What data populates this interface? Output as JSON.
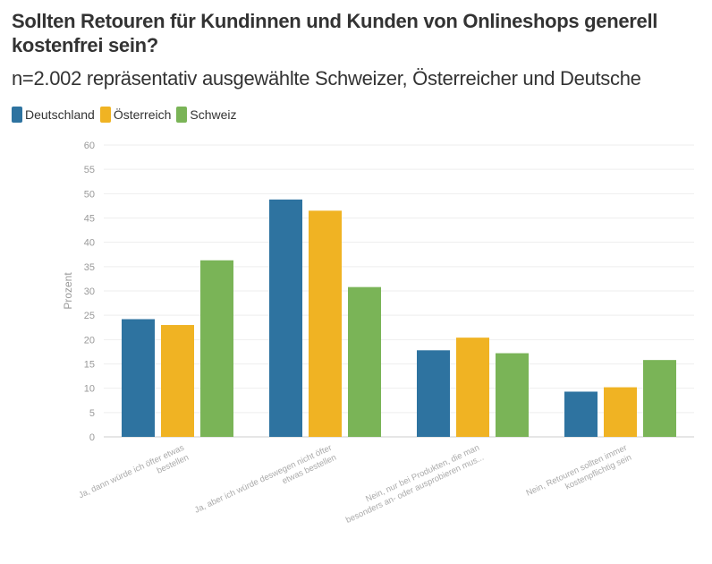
{
  "header": {
    "title": "Sollten Retouren für Kundinnen und Kunden von Onlineshops generell kostenfrei sein?",
    "subtitle": "n=2.002 repräsentativ ausgewählte Schweizer, Österreicher und Deutsche"
  },
  "colors": {
    "Deutschland": "#2e73a0",
    "Österreich": "#f0b323",
    "Schweiz": "#7ab457"
  },
  "chart_data": {
    "type": "bar",
    "title": "Sollten Retouren für Kundinnen und Kunden von Onlineshops generell kostenfrei sein?",
    "subtitle": "n=2.002 repräsentativ ausgewählte Schweizer, Österreicher und Deutsche",
    "xlabel": "",
    "ylabel": "Prozent",
    "ylim": [
      0,
      60
    ],
    "yticks": [
      0,
      5,
      10,
      15,
      20,
      25,
      30,
      35,
      40,
      45,
      50,
      55,
      60
    ],
    "grid": true,
    "legend_position": "top-left",
    "categories": [
      [
        "Ja, dann würde ich öfter etwas",
        "bestellen"
      ],
      [
        "Ja, aber ich würde deswegen nicht öfter",
        "etwas bestellen"
      ],
      [
        "Nein, nur bei Produkten, die man",
        "besonders an- oder ausprobieren mus..."
      ],
      [
        "Nein, Retouren sollten immer",
        "kostenpflichtig sein"
      ]
    ],
    "series": [
      {
        "name": "Deutschland",
        "color": "#2e73a0",
        "values": [
          24.2,
          48.8,
          17.8,
          9.3
        ]
      },
      {
        "name": "Österreich",
        "color": "#f0b323",
        "values": [
          23.0,
          46.5,
          20.4,
          10.2
        ]
      },
      {
        "name": "Schweiz",
        "color": "#7ab457",
        "values": [
          36.3,
          30.8,
          17.2,
          15.8
        ]
      }
    ]
  }
}
